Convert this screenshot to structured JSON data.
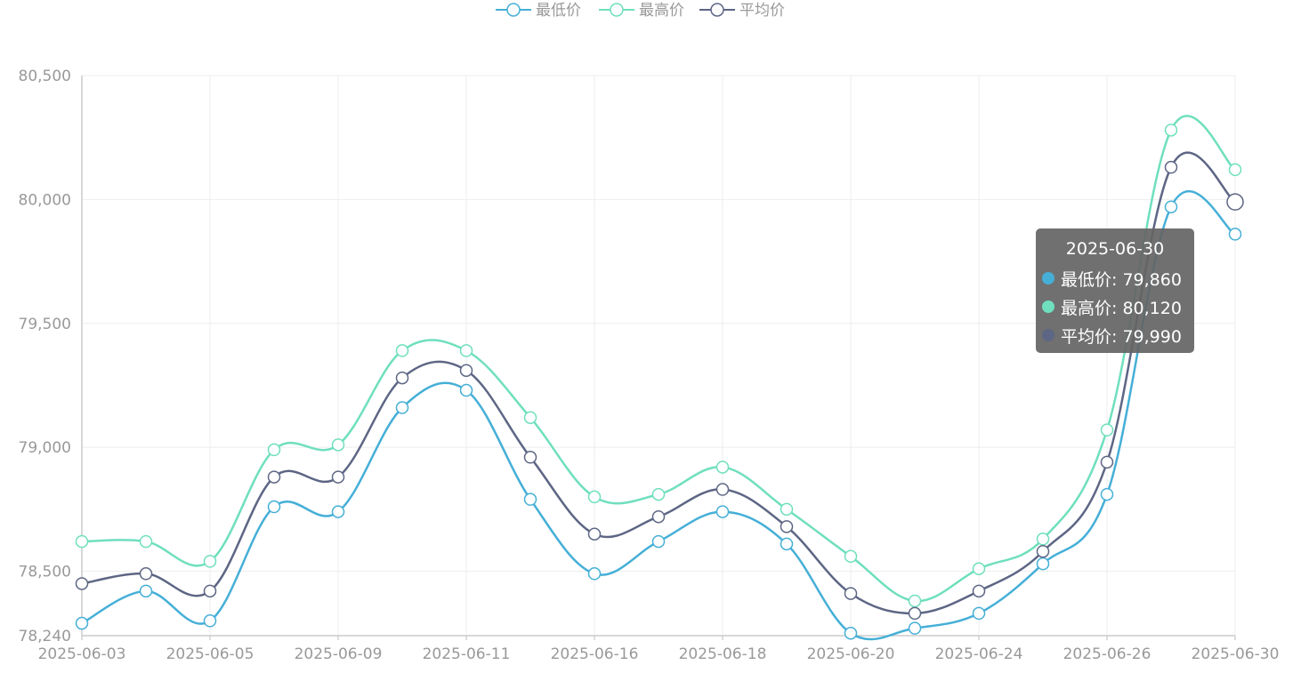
{
  "chart_data": {
    "type": "line",
    "x": [
      "2025-06-03",
      "2025-06-04",
      "2025-06-05",
      "2025-06-06",
      "2025-06-09",
      "2025-06-10",
      "2025-06-11",
      "2025-06-12",
      "2025-06-16",
      "2025-06-17",
      "2025-06-18",
      "2025-06-19",
      "2025-06-20",
      "2025-06-23",
      "2025-06-24",
      "2025-06-25",
      "2025-06-26",
      "2025-06-27",
      "2025-06-30"
    ],
    "x_tick_labels": [
      "2025-06-03",
      "2025-06-05",
      "2025-06-09",
      "2025-06-11",
      "2025-06-16",
      "2025-06-18",
      "2025-06-20",
      "2025-06-24",
      "2025-06-26",
      "2025-06-30"
    ],
    "series": [
      {
        "name": "最低价",
        "color": "#45afd7",
        "values": [
          78290,
          78420,
          78300,
          78760,
          78740,
          79160,
          79230,
          78790,
          78490,
          78620,
          78740,
          78610,
          78250,
          78270,
          78330,
          78530,
          78810,
          79970,
          79860
        ]
      },
      {
        "name": "最高价",
        "color": "#6fdfbd",
        "values": [
          78620,
          78620,
          78540,
          78990,
          79010,
          79390,
          79390,
          79120,
          78800,
          78810,
          78920,
          78750,
          78560,
          78380,
          78510,
          78630,
          79070,
          80280,
          80120
        ]
      },
      {
        "name": "平均价",
        "color": "#5d6684",
        "values": [
          78450,
          78490,
          78420,
          78880,
          78880,
          79280,
          79310,
          78960,
          78650,
          78720,
          78830,
          78680,
          78410,
          78330,
          78420,
          78580,
          78940,
          80130,
          79990
        ]
      }
    ],
    "y_ticks": [
      "80,500",
      "80,000",
      "79,500",
      "79,000",
      "78,500",
      "78,240"
    ],
    "ylim": [
      78240,
      80500
    ],
    "grid": true,
    "legend_position": "top-center",
    "title": "",
    "xlabel": "",
    "ylabel": ""
  },
  "tooltip": {
    "title": "2025-06-30",
    "rows": [
      {
        "label": "最低价: 79,860",
        "color": "#45afd7"
      },
      {
        "label": "最高价: 80,120",
        "color": "#6fdfbd"
      },
      {
        "label": "平均价: 79,990",
        "color": "#5d6684"
      }
    ]
  }
}
